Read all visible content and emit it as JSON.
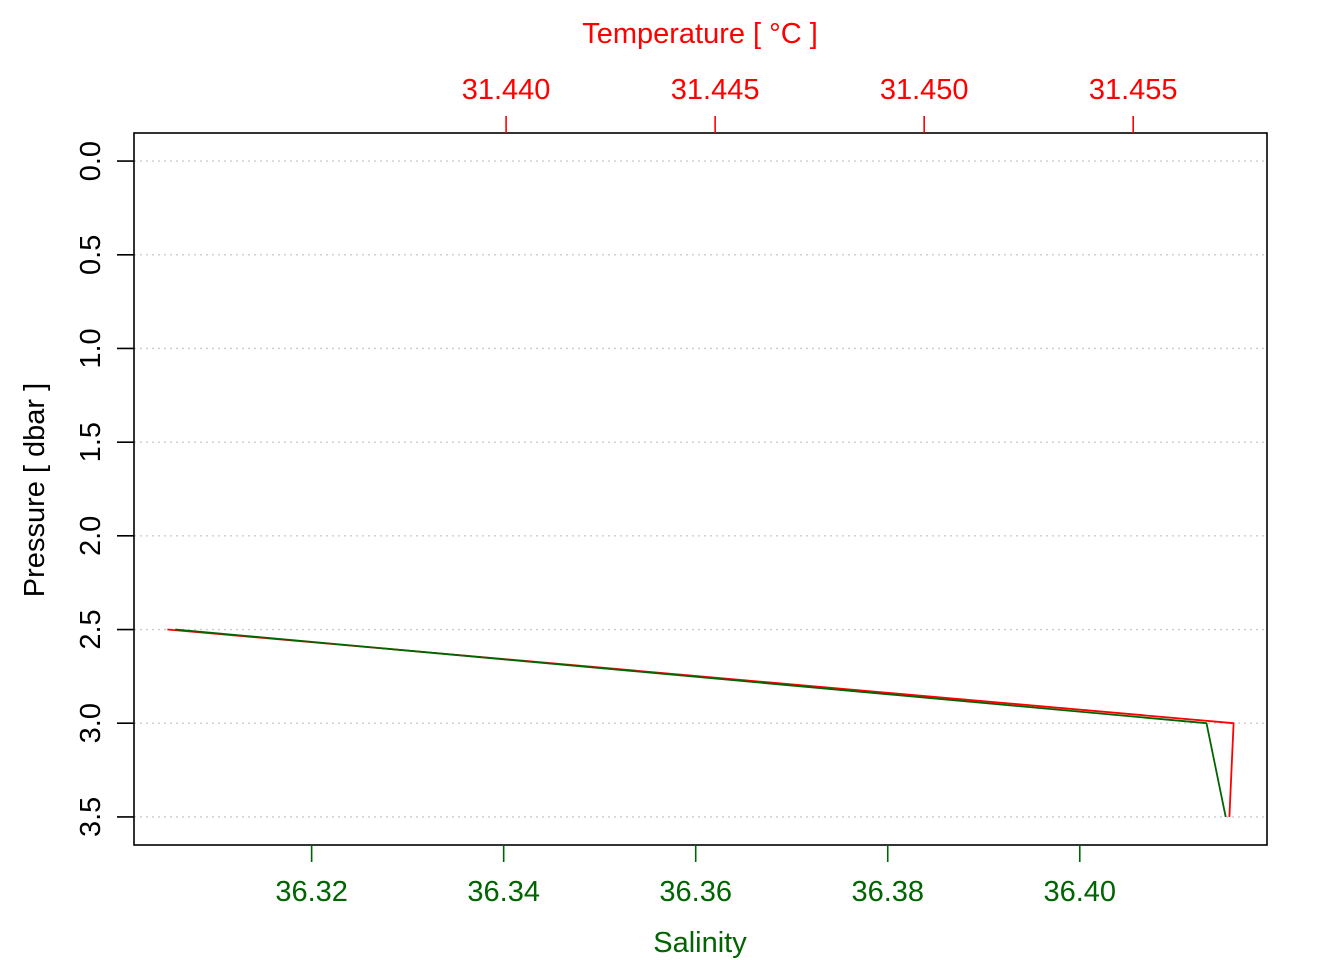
{
  "chart_data": {
    "type": "line",
    "top_axis": {
      "label": "Temperature [ °C ]",
      "color": "#ff0000",
      "range": [
        31.4311,
        31.4582
      ],
      "ticks": [
        31.44,
        31.445,
        31.45,
        31.455
      ],
      "tick_labels": [
        "31.440",
        "31.445",
        "31.450",
        "31.455"
      ]
    },
    "bottom_axis": {
      "label": "Salinity",
      "color": "#006400",
      "range": [
        36.3015,
        36.4195
      ],
      "ticks": [
        36.32,
        36.34,
        36.36,
        36.38,
        36.4
      ],
      "tick_labels": [
        "36.32",
        "36.34",
        "36.36",
        "36.38",
        "36.40"
      ]
    },
    "left_axis": {
      "label": "Pressure [ dbar ]",
      "reversed": true,
      "range": [
        -0.15,
        3.65
      ],
      "ticks": [
        0.0,
        0.5,
        1.0,
        1.5,
        2.0,
        2.5,
        3.0,
        3.5
      ],
      "tick_labels": [
        "0.0",
        "0.5",
        "1.0",
        "1.5",
        "2.0",
        "2.5",
        "3.0",
        "3.5"
      ]
    },
    "grid": "horizontal-dotted",
    "series": [
      {
        "axis": "temperature",
        "color": "#ff0000",
        "points": [
          {
            "x": 31.4319,
            "y": 2.5
          },
          {
            "x": 31.4574,
            "y": 3.0
          },
          {
            "x": 31.4573,
            "y": 3.5
          }
        ]
      },
      {
        "axis": "salinity",
        "color": "#006400",
        "points": [
          {
            "x": 36.3058,
            "y": 2.5
          },
          {
            "x": 36.4132,
            "y": 3.0
          },
          {
            "x": 36.4152,
            "y": 3.5
          }
        ]
      }
    ]
  }
}
